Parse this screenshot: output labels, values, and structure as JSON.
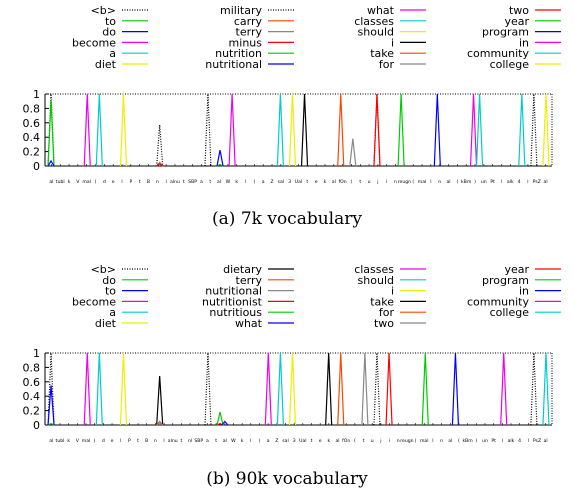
{
  "colors": [
    "#000000",
    "#00cc00",
    "#0000ff",
    "#ee00ee",
    "#00cccc",
    "#eeee00",
    "#000000",
    "#ff4500",
    "#888888",
    "#ff0000",
    "#009900"
  ],
  "chart_data": [
    {
      "type": "line",
      "caption": "(a) 7k vocabulary",
      "ylim": [
        0,
        1
      ],
      "yticks": [
        "0",
        "0.2",
        "0.4",
        "0.6",
        "0.8",
        "1"
      ],
      "xtick_labels": [
        "al",
        "tubl",
        "k",
        "V",
        "mal",
        "(",
        "d",
        "e",
        "l",
        "P",
        "t",
        "B",
        "n",
        "l",
        "alnu",
        "t",
        "SBP",
        "a",
        "t",
        "al",
        "W",
        "k",
        "l",
        "(",
        "a",
        "Z",
        "sal",
        "3",
        "Ual",
        "t",
        "e",
        "k",
        "al",
        "fOn",
        "(",
        "t",
        "u",
        "j",
        "i",
        "n",
        "reugn",
        "(",
        "mal",
        "l",
        "n",
        "al",
        "(",
        "kBm",
        ")",
        "un",
        "Pt",
        "l",
        "alk",
        "4",
        "l",
        "PsZ",
        "al"
      ],
      "legend_columns": [
        [
          "<b>",
          "to",
          "do",
          "become",
          "a",
          "diet"
        ],
        [
          "military",
          "carry",
          "terry",
          "minus",
          "nutrition",
          "nutritional"
        ],
        [
          "what",
          "classes",
          "should",
          "i",
          "take",
          "for"
        ],
        [
          "two",
          "year",
          "program",
          "in",
          "community",
          "college"
        ]
      ],
      "series": [
        {
          "name": "<b>",
          "color": "#000000",
          "style": "dotted",
          "x": [
            1,
            14,
            28,
            41
          ],
          "y": [
            1,
            1,
            1,
            1
          ]
        },
        {
          "name": "to",
          "color": "#00cc00",
          "style": "solid",
          "x": [
            1
          ],
          "y": [
            0.92
          ]
        },
        {
          "name": "do",
          "color": "#0000ff",
          "style": "solid",
          "x": [
            1
          ],
          "y": [
            0.07
          ]
        },
        {
          "name": "become",
          "color": "#ee00ee",
          "style": "solid",
          "x": [
            4
          ],
          "y": [
            1
          ]
        },
        {
          "name": "a",
          "color": "#00cccc",
          "style": "solid",
          "x": [
            5
          ],
          "y": [
            1
          ]
        },
        {
          "name": "diet",
          "color": "#eeee00",
          "style": "solid",
          "x": [
            7
          ],
          "y": [
            1
          ]
        },
        {
          "name": "military",
          "color": "#000000",
          "style": "dotted",
          "x": [
            10
          ],
          "y": [
            0.57
          ]
        },
        {
          "name": "carry",
          "color": "#ff4500",
          "style": "solid",
          "x": [
            10
          ],
          "y": [
            0.05
          ]
        },
        {
          "name": "terry",
          "color": "#888888",
          "style": "solid",
          "x": [
            10
          ],
          "y": [
            0.05
          ]
        },
        {
          "name": "minus",
          "color": "#ff0000",
          "style": "solid",
          "x": [
            10
          ],
          "y": [
            0.03
          ]
        },
        {
          "name": "nutrition",
          "color": "#00cc00",
          "style": "solid",
          "x": [
            15
          ],
          "y": [
            0.02
          ]
        },
        {
          "name": "nutritional",
          "color": "#0000ff",
          "style": "solid",
          "x": [
            15
          ],
          "y": [
            0.22
          ]
        },
        {
          "name": "what",
          "color": "#ee00ee",
          "style": "solid",
          "x": [
            16
          ],
          "y": [
            1
          ]
        },
        {
          "name": "classes",
          "color": "#00cccc",
          "style": "solid",
          "x": [
            20
          ],
          "y": [
            1
          ]
        },
        {
          "name": "should",
          "color": "#eeee00",
          "style": "solid",
          "x": [
            21
          ],
          "y": [
            1
          ]
        },
        {
          "name": "i",
          "color": "#000000",
          "style": "solid",
          "x": [
            22
          ],
          "y": [
            1
          ]
        },
        {
          "name": "take",
          "color": "#ff4500",
          "style": "solid",
          "x": [
            25
          ],
          "y": [
            1
          ]
        },
        {
          "name": "for",
          "color": "#888888",
          "style": "solid",
          "x": [
            26
          ],
          "y": [
            0.38
          ]
        },
        {
          "name": "two",
          "color": "#ff0000",
          "style": "solid",
          "x": [
            28
          ],
          "y": [
            1
          ]
        },
        {
          "name": "year",
          "color": "#00cc00",
          "style": "solid",
          "x": [
            30
          ],
          "y": [
            1
          ]
        },
        {
          "name": "program",
          "color": "#0000ff",
          "style": "solid",
          "x": [
            33
          ],
          "y": [
            1
          ]
        },
        {
          "name": "in",
          "color": "#ee00ee",
          "style": "solid",
          "x": [
            36
          ],
          "y": [
            1
          ]
        },
        {
          "name": "community",
          "color": "#00cccc",
          "style": "solid",
          "x": [
            36.5,
            40
          ],
          "y": [
            1,
            1
          ]
        },
        {
          "name": "college",
          "color": "#eeee00",
          "style": "solid",
          "x": [
            42
          ],
          "y": [
            1
          ]
        }
      ]
    },
    {
      "type": "line",
      "caption": "(b) 90k vocabulary",
      "ylim": [
        0,
        1
      ],
      "yticks": [
        "0",
        "0.2",
        "0.4",
        "0.6",
        "0.8",
        "1"
      ],
      "xtick_labels": [
        "al",
        "tubl",
        "k",
        "V",
        "mal",
        "(",
        "d",
        "e",
        "l",
        "P",
        "t",
        "B",
        "n",
        "l",
        "alnu",
        "t",
        "nl",
        "SBP",
        "a",
        "t",
        "al",
        "W",
        "k",
        "l",
        "(",
        "a",
        "Z",
        "sal",
        "3",
        "Ual",
        "t",
        "e",
        "k",
        "al",
        "fOn",
        "(",
        "t",
        "u",
        "j",
        "i",
        "n",
        "reugn",
        "(",
        "mal",
        "l",
        "n",
        "al",
        "(",
        "kBm",
        ")",
        "un",
        "Pt",
        "l",
        "alk",
        "4",
        "l",
        "PsZ",
        "al"
      ],
      "legend_columns": [
        [
          "<b>",
          "do",
          "to",
          "become",
          "a",
          "diet"
        ],
        [
          "dietary",
          "terry",
          "nutritional",
          "nutritionist",
          "nutritious",
          "what"
        ],
        [
          "classes",
          "should",
          "i",
          "take",
          "for",
          "two"
        ],
        [
          "year",
          "program",
          "in",
          "community",
          "college"
        ]
      ],
      "series": [
        {
          "name": "<b>",
          "color": "#000000",
          "style": "dotted",
          "x": [
            1,
            14,
            28,
            41
          ],
          "y": [
            1,
            1,
            1,
            1
          ]
        },
        {
          "name": "do",
          "color": "#00cc00",
          "style": "solid",
          "x": [
            1
          ],
          "y": [
            0.02
          ]
        },
        {
          "name": "to",
          "color": "#0000ff",
          "style": "solid",
          "x": [
            1
          ],
          "y": [
            0.55
          ]
        },
        {
          "name": "become",
          "color": "#ee00ee",
          "style": "solid",
          "x": [
            4
          ],
          "y": [
            1
          ]
        },
        {
          "name": "a",
          "color": "#00cccc",
          "style": "solid",
          "x": [
            5
          ],
          "y": [
            1
          ]
        },
        {
          "name": "diet",
          "color": "#eeee00",
          "style": "solid",
          "x": [
            7
          ],
          "y": [
            1
          ]
        },
        {
          "name": "dietary",
          "color": "#000000",
          "style": "solid",
          "x": [
            10
          ],
          "y": [
            0.68
          ]
        },
        {
          "name": "terry",
          "color": "#ff4500",
          "style": "solid",
          "x": [
            10
          ],
          "y": [
            0.05
          ]
        },
        {
          "name": "nutritional",
          "color": "#888888",
          "style": "solid",
          "x": [
            10
          ],
          "y": [
            0.03
          ]
        },
        {
          "name": "nutritionist",
          "color": "#ff0000",
          "style": "solid",
          "x": [
            15
          ],
          "y": [
            0.02
          ]
        },
        {
          "name": "nutritious",
          "color": "#00cc00",
          "style": "solid",
          "x": [
            15
          ],
          "y": [
            0.18
          ]
        },
        {
          "name": "what",
          "color": "#0000ff",
          "style": "solid",
          "x": [
            15.4
          ],
          "y": [
            0.05
          ]
        },
        {
          "name": "classes",
          "color": "#ee00ee",
          "style": "solid",
          "x": [
            19
          ],
          "y": [
            1
          ]
        },
        {
          "name": "should",
          "color": "#00cccc",
          "style": "solid",
          "x": [
            20
          ],
          "y": [
            1
          ]
        },
        {
          "name": "i",
          "color": "#eeee00",
          "style": "solid",
          "x": [
            21
          ],
          "y": [
            1
          ]
        },
        {
          "name": "take",
          "color": "#000000",
          "style": "solid",
          "x": [
            24
          ],
          "y": [
            1
          ]
        },
        {
          "name": "for",
          "color": "#ff4500",
          "style": "solid",
          "x": [
            25
          ],
          "y": [
            1
          ]
        },
        {
          "name": "two",
          "color": "#888888",
          "style": "solid",
          "x": [
            27
          ],
          "y": [
            1
          ]
        },
        {
          "name": "year",
          "color": "#ff0000",
          "style": "solid",
          "x": [
            29
          ],
          "y": [
            1
          ]
        },
        {
          "name": "program",
          "color": "#00cc00",
          "style": "solid",
          "x": [
            32
          ],
          "y": [
            1
          ]
        },
        {
          "name": "in",
          "color": "#0000ff",
          "style": "solid",
          "x": [
            34.5
          ],
          "y": [
            1
          ]
        },
        {
          "name": "community",
          "color": "#ee00ee",
          "style": "solid",
          "x": [
            38.5
          ],
          "y": [
            1
          ]
        },
        {
          "name": "college",
          "color": "#00cccc",
          "style": "solid",
          "x": [
            42
          ],
          "y": [
            1
          ]
        }
      ]
    }
  ]
}
